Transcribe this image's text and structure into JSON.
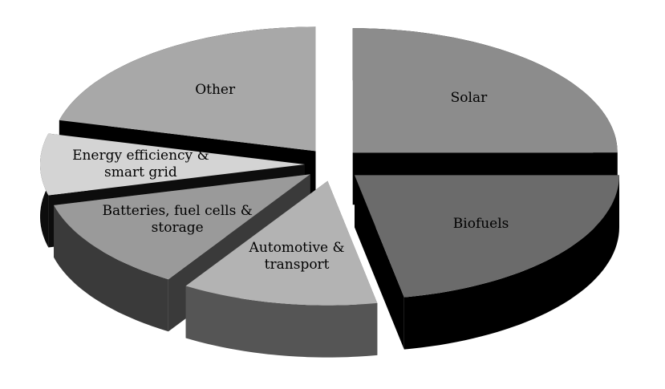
{
  "chart_data": {
    "type": "pie3d",
    "categories": [
      "Solar",
      "Biofuels",
      "Automotive & transport",
      "Batteries, fuel cells & storage",
      "Energy efficiency & smart grid",
      "Other"
    ],
    "values": [
      25,
      22,
      12,
      12,
      8,
      21
    ],
    "colors": [
      "#8c8c8c",
      "#6b6b6b",
      "#b3b3b3",
      "#9a9a9a",
      "#d4d4d4",
      "#a8a8a8"
    ],
    "side_colors": [
      "#000000",
      "#000000",
      "#555555",
      "#3a3a3a",
      "#0d0d0d",
      "#000000"
    ],
    "exploded": true
  }
}
